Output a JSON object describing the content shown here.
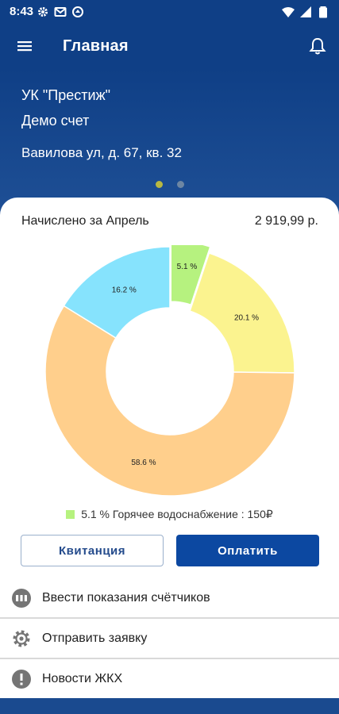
{
  "status_bar": {
    "time": "8:43"
  },
  "app_bar": {
    "title": "Главная"
  },
  "header": {
    "org": "УК \"Престиж\"",
    "account": "Демо счет",
    "address": "Вавилова ул, д. 67, кв. 32"
  },
  "card": {
    "charged_label": "Начислено за Апрель",
    "charged_amount": "2 919,99 р."
  },
  "chart_data": {
    "type": "pie",
    "values": [
      5.1,
      20.1,
      58.6,
      16.2
    ],
    "labels": [
      "5.1 %",
      "20.1 %",
      "58.6 %",
      "16.2 %"
    ],
    "colors": [
      "#b6f27f",
      "#fbf38f",
      "#ffcf8c",
      "#86e3fd"
    ],
    "selected_index": 0
  },
  "legend": {
    "text": "5.1 % Горячее водоснабжение : 150₽"
  },
  "buttons": {
    "receipt": "Квитанция",
    "pay": "Оплатить"
  },
  "menu": [
    {
      "label": "Ввести показания счётчиков",
      "icon": "meter-icon"
    },
    {
      "label": "Отправить заявку",
      "icon": "gear-icon"
    },
    {
      "label": "Новости ЖКХ",
      "icon": "alert-icon"
    }
  ]
}
